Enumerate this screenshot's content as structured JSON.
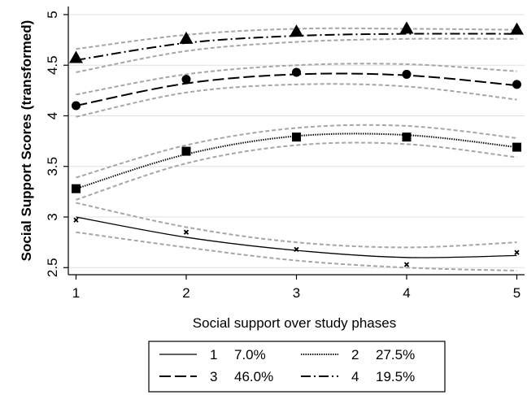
{
  "chart_data": {
    "type": "line",
    "title": "",
    "xlabel": "Social support over study phases",
    "ylabel": "Social Support Scores (transformed)",
    "x": [
      1,
      2,
      3,
      4,
      5
    ],
    "x_ticks": [
      "1",
      "2",
      "3",
      "4",
      "5"
    ],
    "xlim": [
      0.93,
      5.07
    ],
    "ylim": [
      2.43,
      5.08
    ],
    "y_ticks": [
      "2.5",
      "3",
      "3.5",
      "4",
      "4.5",
      "5"
    ],
    "grid": true,
    "legend_position": "bottom",
    "series": [
      {
        "name": "1",
        "share": "7.0%",
        "line_style": "solid",
        "marker": "x",
        "observed": [
          2.97,
          2.85,
          2.68,
          2.53,
          2.65
        ],
        "fitted": [
          3.0,
          2.8,
          2.67,
          2.6,
          2.62
        ],
        "ci_upper": [
          3.14,
          2.9,
          2.75,
          2.7,
          2.75
        ],
        "ci_lower": [
          2.85,
          2.7,
          2.57,
          2.5,
          2.47
        ]
      },
      {
        "name": "2",
        "share": "27.5%",
        "line_style": "dotted",
        "marker": "square",
        "observed": [
          3.28,
          3.65,
          3.79,
          3.79,
          3.69
        ],
        "fitted": [
          3.28,
          3.62,
          3.8,
          3.81,
          3.69
        ],
        "ci_upper": [
          3.39,
          3.71,
          3.88,
          3.9,
          3.78
        ],
        "ci_lower": [
          3.17,
          3.53,
          3.71,
          3.72,
          3.59
        ]
      },
      {
        "name": "3",
        "share": "46.0%",
        "line_style": "dashed",
        "marker": "circle",
        "observed": [
          4.1,
          4.36,
          4.43,
          4.41,
          4.31
        ],
        "fitted": [
          4.1,
          4.32,
          4.41,
          4.4,
          4.3
        ],
        "ci_upper": [
          4.21,
          4.41,
          4.5,
          4.51,
          4.44
        ],
        "ci_lower": [
          3.99,
          4.23,
          4.31,
          4.29,
          4.16
        ]
      },
      {
        "name": "4",
        "share": "19.5%",
        "line_style": "dash-dot",
        "marker": "triangle",
        "observed": [
          4.57,
          4.76,
          4.83,
          4.86,
          4.85
        ],
        "fitted": [
          4.55,
          4.72,
          4.79,
          4.81,
          4.81
        ],
        "ci_upper": [
          4.66,
          4.8,
          4.86,
          4.86,
          4.85
        ],
        "ci_lower": [
          4.43,
          4.64,
          4.73,
          4.76,
          4.76
        ]
      }
    ]
  },
  "colors": {
    "line": "#000000",
    "ci": "#a6a6a6",
    "grid": "#e0e0e0"
  }
}
